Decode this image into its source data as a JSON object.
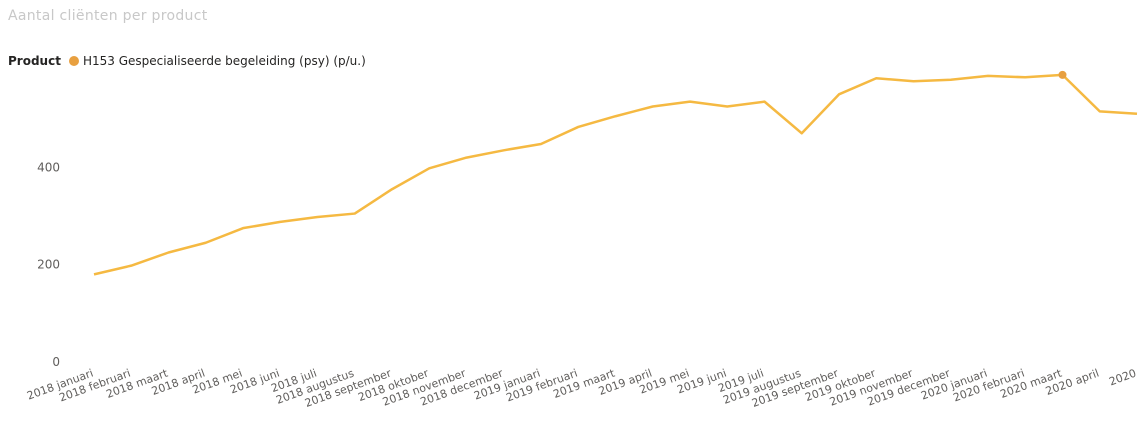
{
  "title": "Aantal cliënten per product",
  "legend": {
    "label": "Product",
    "series_name": "H153 Gespecialiseerde begeleiding (psy) (p/u.)"
  },
  "colors": {
    "series": "#F5B942",
    "marker": "#E8A040",
    "axis_text": "#605E5C"
  },
  "chart_data": {
    "type": "line",
    "title": "Aantal cliënten per product",
    "xlabel": "",
    "ylabel": "",
    "ylim": [
      0,
      600
    ],
    "yticks": [
      0,
      200,
      400
    ],
    "grid": false,
    "legend_position": "top-left",
    "categories": [
      "2018 januari",
      "2018 februari",
      "2018 maart",
      "2018 april",
      "2018 mei",
      "2018 juni",
      "2018 juli",
      "2018 augustus",
      "2018 september",
      "2018 oktober",
      "2018 november",
      "2018 december",
      "2019 januari",
      "2019 februari",
      "2019 maart",
      "2019 april",
      "2019 mei",
      "2019 juni",
      "2019 juli",
      "2019 augustus",
      "2019 september",
      "2019 oktober",
      "2019 november",
      "2019 december",
      "2020 januari",
      "2020 februari",
      "2020 maart",
      "2020 april",
      "2020"
    ],
    "series": [
      {
        "name": "H153 Gespecialiseerde begeleiding (psy) (p/u.)",
        "values": [
          180,
          198,
          225,
          245,
          275,
          288,
          298,
          305,
          355,
          398,
          420,
          435,
          448,
          483,
          505,
          525,
          535,
          525,
          535,
          470,
          550,
          583,
          577,
          580,
          588,
          585,
          590,
          515,
          510
        ],
        "highlight_index": 26
      }
    ]
  }
}
